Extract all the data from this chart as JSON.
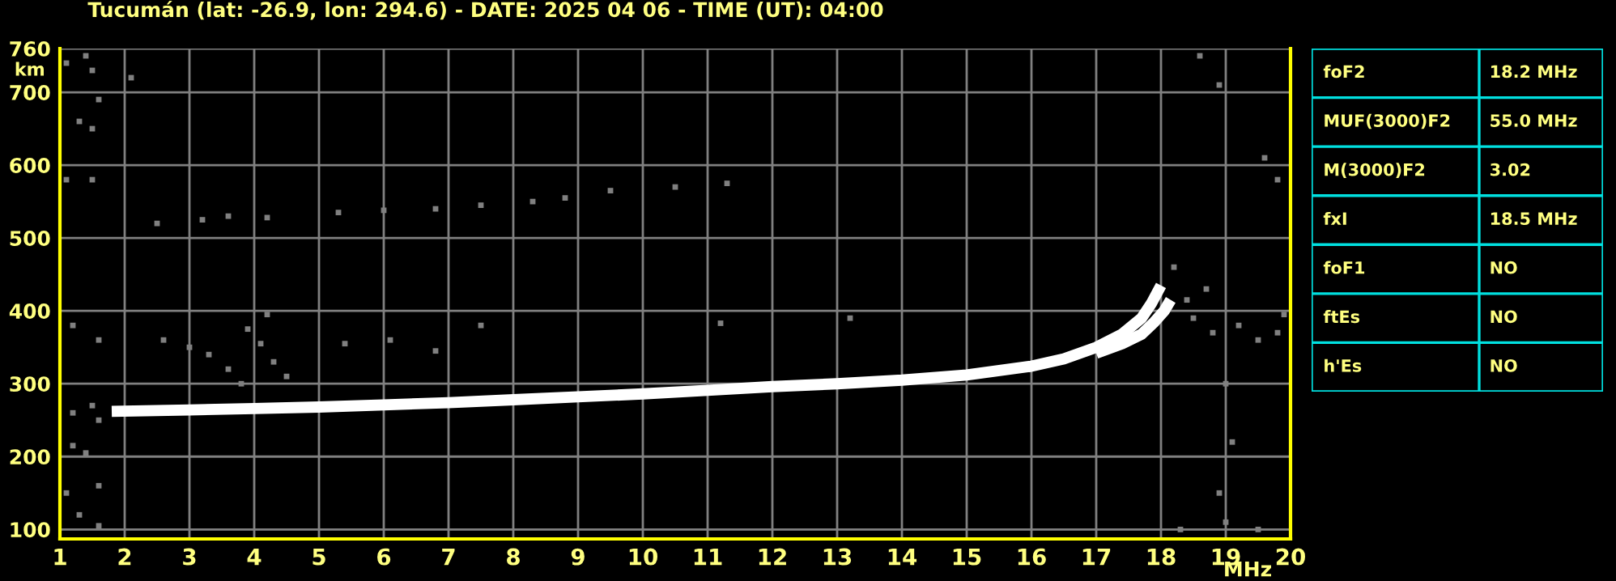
{
  "chart_data": [
    {
      "type": "scatter",
      "title": "Tucumán (lat: -26.9, lon: 294.6) - DATE: 2025 04 06 - TIME (UT): 04:00",
      "xlabel": "MHz",
      "ylabel": "km",
      "xlim": [
        1,
        20
      ],
      "xticks": [
        1,
        2,
        3,
        4,
        5,
        6,
        7,
        8,
        9,
        10,
        11,
        12,
        13,
        14,
        15,
        16,
        17,
        18,
        19,
        20
      ],
      "ylim": [
        87,
        760
      ],
      "yticks": [
        100,
        200,
        300,
        400,
        500,
        600,
        700,
        760
      ],
      "grid": true,
      "legend": false,
      "series": [
        {
          "type": "line",
          "color": "#ffffff",
          "x": [
            1.8,
            3,
            4,
            5,
            6,
            7,
            8,
            9,
            10,
            11,
            12,
            13,
            14,
            15,
            16,
            16.5,
            17,
            17.4,
            17.7,
            17.85,
            18.0
          ],
          "values": [
            262,
            264,
            266,
            268,
            271,
            274,
            278,
            282,
            286,
            291,
            296,
            300,
            305,
            312,
            324,
            334,
            350,
            368,
            390,
            410,
            435
          ]
        },
        {
          "type": "line",
          "color": "#ffffff",
          "x": [
            17.0,
            17.4,
            17.7,
            17.9,
            18.05,
            18.15
          ],
          "values": [
            342,
            355,
            368,
            385,
            400,
            415
          ]
        },
        {
          "type": "scatter",
          "color": "#808080",
          "x": [
            1.1,
            1.4,
            1.5,
            1.6,
            1.3,
            1.5,
            1.1,
            1.5,
            1.2,
            1.6,
            1.2,
            1.5,
            1.6,
            1.2,
            1.4,
            1.6,
            1.3,
            1.6,
            1.1,
            2.1,
            2.5,
            3.2,
            3.6,
            4.2,
            5.3,
            6.0,
            6.8,
            7.5,
            8.3,
            8.8,
            9.5,
            10.5,
            11.3,
            2.6,
            3.0,
            3.3,
            3.6,
            3.9,
            4.1,
            4.3,
            4.5,
            4.2,
            3.8,
            5.4,
            6.1,
            6.8,
            7.5,
            11.2,
            13.2,
            18.2,
            18.5,
            18.8,
            19.2,
            19.5,
            19.8,
            19.9,
            19.0,
            19.1,
            18.9,
            19.0,
            19.5,
            18.3,
            18.6,
            18.9,
            19.6,
            19.8,
            18.7,
            18.4
          ],
          "values": [
            740,
            750,
            730,
            690,
            660,
            650,
            580,
            580,
            380,
            360,
            260,
            270,
            250,
            215,
            205,
            160,
            120,
            105,
            150,
            720,
            520,
            525,
            530,
            528,
            535,
            538,
            540,
            545,
            550,
            555,
            565,
            570,
            575,
            360,
            350,
            340,
            320,
            375,
            355,
            330,
            310,
            395,
            300,
            355,
            360,
            345,
            380,
            383,
            390,
            460,
            390,
            370,
            380,
            360,
            370,
            395,
            300,
            220,
            150,
            110,
            100,
            100,
            750,
            710,
            610,
            580,
            430,
            415
          ]
        }
      ]
    },
    {
      "type": "other",
      "y_categories": [
        "foF2",
        "MUF(3000)F2",
        "M(3000)F2",
        "fxI",
        "foF1",
        "ftEs",
        "h'Es"
      ],
      "cell_labels": [
        [
          "18.2 MHz"
        ],
        [
          "55.0 MHz"
        ],
        [
          "3.02"
        ],
        [
          "18.5 MHz"
        ],
        [
          "NO"
        ],
        [
          "NO"
        ],
        [
          "NO"
        ]
      ]
    }
  ]
}
